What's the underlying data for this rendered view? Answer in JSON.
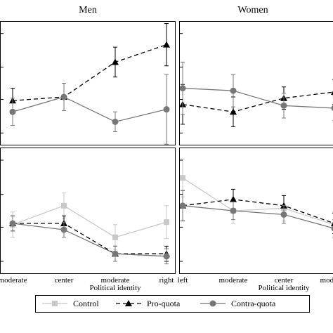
{
  "chart_data": [
    {
      "type": "line",
      "title": "Men",
      "categories": [
        "moderate",
        "center",
        "moderate",
        "right"
      ],
      "ylim": [
        0,
        10
      ],
      "series": [
        {
          "name": "Pro-quota",
          "color": "#000000",
          "values": [
            3.6,
            3.9,
            6.7,
            8.1
          ],
          "errors": [
            1.0,
            1.1,
            1.2,
            1.7
          ]
        },
        {
          "name": "Contra-quota",
          "color": "#777777",
          "values": [
            2.7,
            3.9,
            1.9,
            2.9
          ],
          "errors": [
            1.1,
            1.1,
            0.8,
            2.8
          ]
        }
      ]
    },
    {
      "type": "line",
      "title": "Women",
      "categories": [
        "left",
        "moderate",
        "center",
        "moderate"
      ],
      "ylim": [
        0,
        10
      ],
      "series": [
        {
          "name": "Pro-quota",
          "color": "#000000",
          "values": [
            3.3,
            2.7,
            3.8,
            4.3
          ],
          "errors": [
            1.6,
            1.2,
            0.9,
            1.0
          ]
        },
        {
          "name": "Contra-quota",
          "color": "#777777",
          "values": [
            4.6,
            4.4,
            3.2,
            3.0
          ],
          "errors": [
            2.1,
            1.3,
            1.0,
            1.0
          ]
        }
      ]
    },
    {
      "type": "line",
      "categories": [
        "moderate",
        "center",
        "moderate",
        "right"
      ],
      "xlabel": "Political identity",
      "ylim": [
        0,
        10
      ],
      "series": [
        {
          "name": "Control",
          "color": "#c8c8c8",
          "values": [
            3.9,
            5.4,
            2.9,
            4.1
          ],
          "errors": [
            1.0,
            1.0,
            1.0,
            1.3
          ]
        },
        {
          "name": "Pro-quota",
          "color": "#000000",
          "values": [
            4.0,
            4.0,
            1.6,
            1.6
          ],
          "errors": [
            0.6,
            0.6,
            0.6,
            0.6
          ]
        },
        {
          "name": "Contra-quota",
          "color": "#777777",
          "values": [
            4.0,
            3.5,
            1.6,
            1.4
          ],
          "errors": [
            0.6,
            0.6,
            0.6,
            0.6
          ]
        }
      ]
    },
    {
      "type": "line",
      "categories": [
        "left",
        "moderate",
        "center",
        "moderate"
      ],
      "xlabel": "Political identity",
      "ylim": [
        0,
        10
      ],
      "series": [
        {
          "name": "Control",
          "color": "#c8c8c8",
          "values": [
            7.6,
            5.0,
            5.2,
            3.9
          ],
          "errors": [
            1.5,
            1.0,
            1.0,
            1.0
          ]
        },
        {
          "name": "Pro-quota",
          "color": "#000000",
          "values": [
            5.4,
            5.9,
            5.4,
            4.0
          ],
          "errors": [
            1.2,
            0.8,
            0.8,
            0.8
          ]
        },
        {
          "name": "Contra-quota",
          "color": "#777777",
          "values": [
            5.4,
            5.0,
            4.7,
            3.6
          ],
          "errors": [
            1.2,
            0.7,
            0.7,
            0.7
          ]
        }
      ]
    }
  ]
}
